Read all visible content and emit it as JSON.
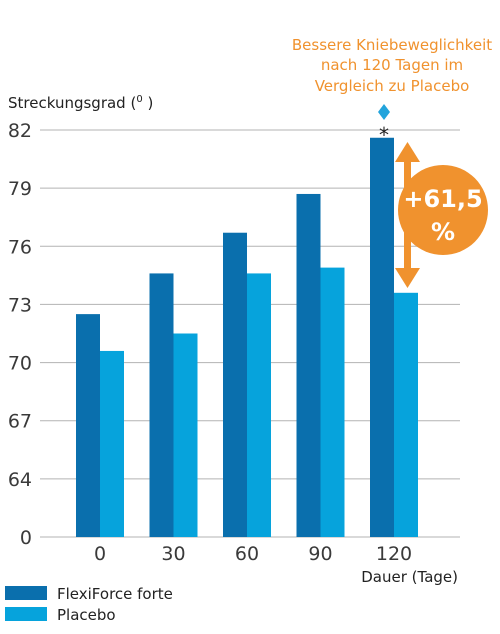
{
  "chart_data": {
    "type": "bar",
    "title": "",
    "ylabel": "Streckungsgrad",
    "ylabel_unit": "0",
    "xlabel": "Dauer (Tage)",
    "categories": [
      "0",
      "30",
      "60",
      "90",
      "120"
    ],
    "y_ticks": [
      "0",
      "64",
      "67",
      "70",
      "73",
      "76",
      "79",
      "82"
    ],
    "axis_break": true,
    "ylim": [
      61,
      82
    ],
    "grid": true,
    "legend_position": "bottom-left",
    "series": [
      {
        "name": "FlexiForce forte",
        "color": "#0a6fad",
        "values": [
          72.5,
          74.6,
          76.7,
          78.7,
          81.6
        ]
      },
      {
        "name": "Placebo",
        "color": "#06a3dc",
        "values": [
          70.6,
          71.5,
          74.6,
          74.9,
          73.6
        ]
      }
    ],
    "annotation": {
      "lines": [
        "Bessere Kniebeweglichkeit",
        "nach 120 Tagen im",
        "Vergleich zu Placebo"
      ],
      "badge_lines": [
        "+61,5",
        "%"
      ],
      "significance_marker": "*",
      "color": "#f0922e",
      "category": "120"
    },
    "diamond_color": "#22a4dc"
  }
}
